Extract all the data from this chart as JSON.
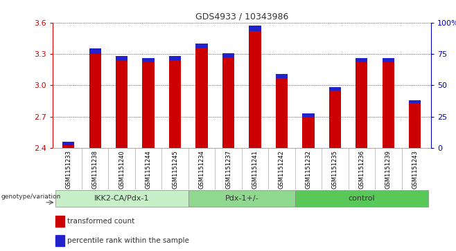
{
  "title": "GDS4933 / 10343986",
  "samples": [
    "GSM1151233",
    "GSM1151238",
    "GSM1151240",
    "GSM1151244",
    "GSM1151245",
    "GSM1151234",
    "GSM1151237",
    "GSM1151241",
    "GSM1151242",
    "GSM1151232",
    "GSM1151235",
    "GSM1151236",
    "GSM1151239",
    "GSM1151243"
  ],
  "red_values": [
    2.46,
    3.35,
    3.28,
    3.26,
    3.28,
    3.4,
    3.31,
    3.57,
    3.11,
    2.73,
    2.98,
    3.26,
    3.26,
    2.86
  ],
  "blue_heights": [
    0.03,
    0.05,
    0.04,
    0.04,
    0.04,
    0.04,
    0.04,
    0.05,
    0.04,
    0.03,
    0.03,
    0.04,
    0.04,
    0.03
  ],
  "ymin": 2.4,
  "ymax": 3.6,
  "yticks": [
    2.4,
    2.7,
    3.0,
    3.3,
    3.6
  ],
  "right_yticks": [
    0,
    25,
    50,
    75,
    100
  ],
  "right_yticklabels": [
    "0",
    "25",
    "50",
    "75",
    "100%"
  ],
  "groups": [
    {
      "label": "IKK2-CA/Pdx-1",
      "start": 0,
      "end": 5,
      "color": "#c8f0c8"
    },
    {
      "label": "Pdx-1+/-",
      "start": 5,
      "end": 9,
      "color": "#90d890"
    },
    {
      "label": "control",
      "start": 9,
      "end": 14,
      "color": "#58c858"
    }
  ],
  "bar_width": 0.45,
  "bar_color_red": "#cc0000",
  "bar_color_blue": "#2222cc",
  "background_color": "#ffffff",
  "tick_color_left": "#cc0000",
  "tick_color_right": "#0000bb",
  "grid_color": "#000000",
  "genotype_label": "genotype/variation",
  "legend_red": "transformed count",
  "legend_blue": "percentile rank within the sample",
  "xticklabel_bg": "#dddddd"
}
